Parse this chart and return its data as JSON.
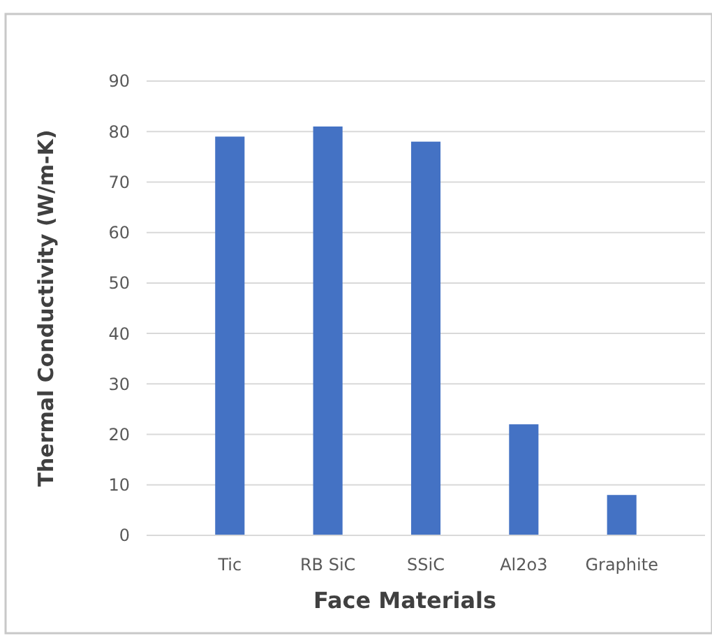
{
  "chart_data": {
    "type": "bar",
    "xlabel": "Face Materials",
    "ylabel": "Thermal Conductivity (W/m-K)",
    "categories": [
      "Tic",
      "RB SiC",
      "SSiC",
      "Al2o3",
      "Graphite"
    ],
    "values": [
      79,
      81,
      78,
      22,
      8
    ],
    "color": "#4472c4",
    "ylim": [
      0,
      90
    ],
    "yticks": [
      0,
      10,
      20,
      30,
      40,
      50,
      60,
      70,
      80,
      90
    ],
    "grid": "y"
  }
}
